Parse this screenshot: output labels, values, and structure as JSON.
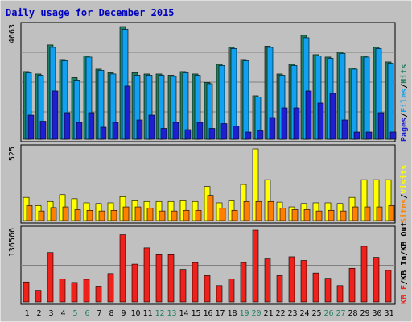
{
  "chart_data": {
    "type": "bar",
    "title": "Daily usage for December 2015",
    "categories": [
      "1",
      "2",
      "3",
      "4",
      "5",
      "6",
      "7",
      "8",
      "9",
      "10",
      "11",
      "12",
      "13",
      "14",
      "15",
      "16",
      "17",
      "18",
      "19",
      "20",
      "21",
      "22",
      "23",
      "24",
      "25",
      "26",
      "27",
      "28",
      "29",
      "30",
      "31"
    ],
    "weekend_days": [
      "5",
      "6",
      "12",
      "13",
      "19",
      "20",
      "26",
      "27"
    ],
    "panels": [
      {
        "id": "hits-files-pages",
        "max_label": "4663",
        "ymax": 4663,
        "legend": [
          "Pages",
          "Files",
          "Hits"
        ],
        "series": [
          {
            "name": "Hits",
            "color": "#1f7f60",
            "values": [
              2800,
              2700,
              3900,
              3300,
              2550,
              3450,
              2900,
              2750,
              4663,
              2750,
              2700,
              2700,
              2650,
              2800,
              2700,
              2350,
              3100,
              3800,
              3300,
              1800,
              3850,
              2700,
              3100,
              4300,
              3500,
              3400,
              3600,
              2950,
              3450,
              3800,
              3200
            ]
          },
          {
            "name": "Files",
            "color": "#12a0f0",
            "values": [
              2750,
              2650,
              3800,
              3250,
              2450,
              3400,
              2850,
              2700,
              4550,
              2650,
              2650,
              2650,
              2600,
              2750,
              2650,
              2300,
              3050,
              3750,
              3250,
              1750,
              3800,
              2650,
              3050,
              4200,
              3450,
              3350,
              3550,
              2900,
              3400,
              3750,
              3150
            ]
          },
          {
            "name": "Pages",
            "color": "#1d1fd0",
            "values": [
              1000,
              750,
              2000,
              1100,
              700,
              1100,
              500,
              700,
              2200,
              800,
              1000,
              450,
              700,
              400,
              700,
              450,
              650,
              550,
              300,
              350,
              900,
              1300,
              1300,
              2000,
              1500,
              1900,
              800,
              300,
              300,
              1100,
              300
            ]
          }
        ]
      },
      {
        "id": "visits-sites",
        "max_label": "525",
        "ymax": 525,
        "legend": [
          "Sites",
          "Visits"
        ],
        "series": [
          {
            "name": "Visits",
            "color": "#ffff00",
            "values": [
              170,
              110,
              140,
              190,
              160,
              130,
              125,
              130,
              175,
              145,
              140,
              140,
              140,
              145,
              140,
              250,
              130,
              145,
              265,
              525,
              300,
              135,
              100,
              125,
              130,
              130,
              125,
              170,
              300,
              300,
              300
            ]
          },
          {
            "name": "Sites",
            "color": "#ff8000",
            "values": [
              110,
              70,
              95,
              100,
              80,
              75,
              70,
              75,
              100,
              100,
              90,
              70,
              70,
              75,
              75,
              185,
              90,
              75,
              140,
              140,
              140,
              90,
              80,
              80,
              70,
              75,
              70,
              100,
              100,
              100,
              110
            ]
          }
        ]
      },
      {
        "id": "kb",
        "max_label": "136566",
        "ymax": 136566,
        "legend": [
          "KB F",
          "KB In",
          "KB Out"
        ],
        "series": [
          {
            "name": "KB F",
            "color": "#f0201a",
            "values": [
              38000,
              22000,
              94000,
              44000,
              37000,
              43000,
              30000,
              54000,
              128000,
              72000,
              103000,
              90000,
              90000,
              62000,
              75000,
              50000,
              31000,
              44000,
              75000,
              136566,
              82000,
              50000,
              86000,
              79000,
              55000,
              45000,
              31000,
              64000,
              106000,
              85000,
              60000
            ]
          }
        ]
      }
    ]
  },
  "colors": {
    "background": "#c0c0c0",
    "title": "#0000c0",
    "weekday_label": "#000000",
    "weekend_label": "#1f7f60"
  }
}
